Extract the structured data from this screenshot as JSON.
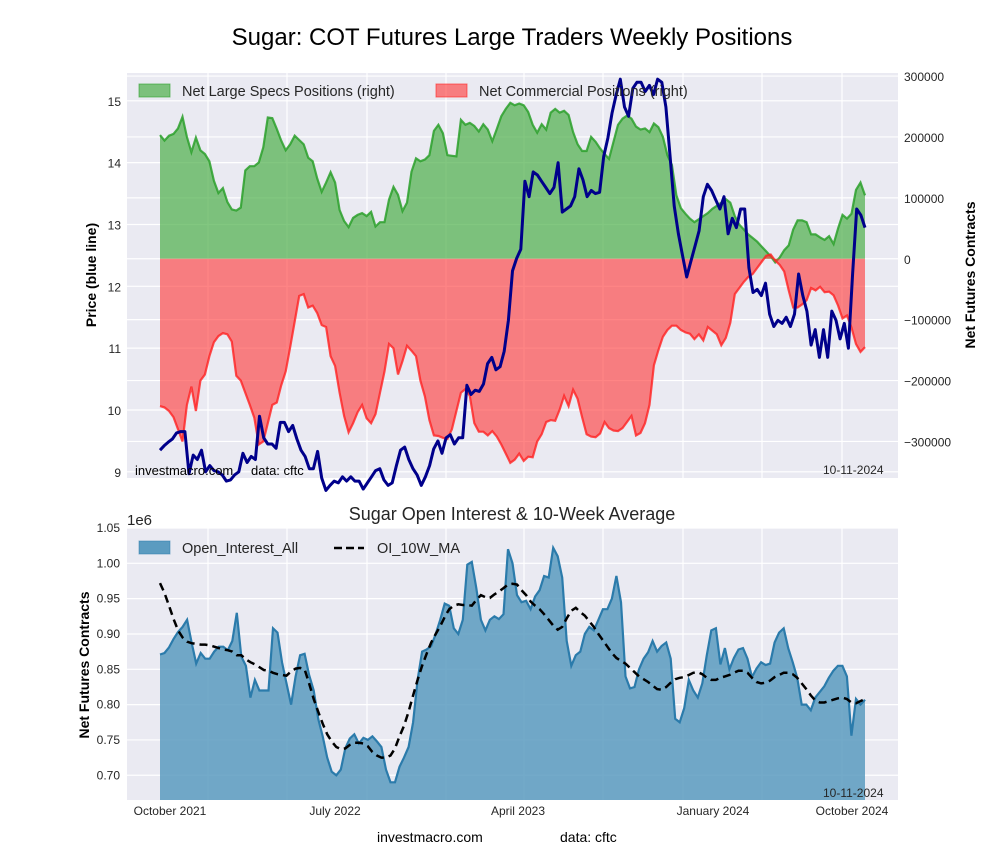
{
  "figure": {
    "title": "Sugar: COT Futures Large Traders Weekly Positions",
    "footer_site": "investmacro.com",
    "footer_source": "data: cftc"
  },
  "colors": {
    "specs_fill": "#4daf4a",
    "specs_line": "#2ca02c",
    "comm_fill": "#ff3333",
    "comm_line": "#ff2020",
    "price_line": "#00008b",
    "oi_fill": "#5b9bc0",
    "oi_line": "#2b7bab",
    "ma_line": "#000000",
    "plot_bg": "#eaeaf2",
    "grid": "#ffffff"
  },
  "chart_data": [
    {
      "type": "area",
      "title": "",
      "ylabel": "Price (blue line)",
      "y2label": "Net Futures Contracts",
      "ylim": [
        8.9,
        15.45
      ],
      "y2lim": [
        -360000,
        305000
      ],
      "yticks": [
        "9",
        "10",
        "11",
        "12",
        "13",
        "14",
        "15"
      ],
      "y2ticks": [
        "300000",
        "200000",
        "100000",
        "0",
        "−100000",
        "−200000",
        "−300000"
      ],
      "grid": true,
      "legend_position": "top",
      "legend": [
        "Net Large Specs Positions (right)",
        "Net Commercial Positions (right)"
      ],
      "watermark_left": "investmacro.com     data: cftc",
      "date_label": "10-11-2024",
      "x_start": "2021-09-28",
      "x_end": "2024-10-08",
      "series": [
        {
          "name": "Net Large Specs Positions",
          "axis": "right",
          "values": [
            203000,
            194000,
            202000,
            205000,
            214000,
            233000,
            200000,
            175000,
            199000,
            178000,
            172000,
            160000,
            128000,
            108000,
            116000,
            93000,
            81000,
            79000,
            84000,
            145000,
            152000,
            152000,
            158000,
            183000,
            232000,
            231000,
            213000,
            194000,
            178000,
            188000,
            202000,
            195000,
            188000,
            166000,
            160000,
            132000,
            110000,
            125000,
            142000,
            125000,
            80000,
            62000,
            52000,
            67000,
            72000,
            75000,
            70000,
            77000,
            53000,
            60000,
            60000,
            97000,
            118000,
            105000,
            78000,
            92000,
            143000,
            165000,
            160000,
            163000,
            170000,
            210000,
            220000,
            206000,
            170000,
            169000,
            168000,
            228000,
            220000,
            223000,
            218000,
            209000,
            221000,
            212000,
            193000,
            213000,
            234000,
            246000,
            256000,
            252000,
            255000,
            252000,
            241000,
            220000,
            207000,
            221000,
            212000,
            240000,
            246000,
            240000,
            243000,
            236000,
            208000,
            188000,
            177000,
            177000,
            200000,
            192000,
            181000,
            172000,
            164000,
            192000,
            220000,
            230000,
            235000,
            230000,
            217000,
            212000,
            214000,
            208000,
            222000,
            216000,
            200000,
            170000,
            154000,
            104000,
            83000,
            74000,
            66000,
            60000,
            65000,
            70000,
            75000,
            82000,
            87000,
            92000,
            98000,
            92000,
            70000,
            56000,
            48000,
            40000,
            34000,
            28000,
            20000,
            12000,
            4000,
            -6000,
            2000,
            14000,
            22000,
            48000,
            63000,
            63000,
            60000,
            40000,
            40000,
            35000,
            31000,
            37000,
            24000,
            50000,
            72000,
            66000,
            74000,
            113000,
            125000,
            104000
          ]
        },
        {
          "name": "Net Commercial Positions",
          "axis": "right",
          "values": [
            -242000,
            -244000,
            -250000,
            -260000,
            -280000,
            -300000,
            -240000,
            -210000,
            -250000,
            -200000,
            -190000,
            -160000,
            -137000,
            -127000,
            -122000,
            -124000,
            -136000,
            -192000,
            -200000,
            -220000,
            -240000,
            -261000,
            -305000,
            -300000,
            -270000,
            -240000,
            -236000,
            -208000,
            -185000,
            -145000,
            -103000,
            -61000,
            -58000,
            -80000,
            -77000,
            -89000,
            -109000,
            -112000,
            -160000,
            -176000,
            -220000,
            -258000,
            -285000,
            -270000,
            -252000,
            -240000,
            -262000,
            -270000,
            -255000,
            -220000,
            -185000,
            -140000,
            -147000,
            -190000,
            -168000,
            -143000,
            -151000,
            -160000,
            -200000,
            -226000,
            -265000,
            -290000,
            -291000,
            -294000,
            -296000,
            -280000,
            -250000,
            -220000,
            -214000,
            -225000,
            -270000,
            -284000,
            -284000,
            -290000,
            -283000,
            -292000,
            -305000,
            -320000,
            -335000,
            -330000,
            -320000,
            -332000,
            -325000,
            -326000,
            -300000,
            -288000,
            -268000,
            -265000,
            -266000,
            -248000,
            -225000,
            -242000,
            -215000,
            -230000,
            -260000,
            -288000,
            -292000,
            -293000,
            -287000,
            -268000,
            -278000,
            -282000,
            -283000,
            -278000,
            -268000,
            -258000,
            -290000,
            -286000,
            -270000,
            -240000,
            -175000,
            -150000,
            -128000,
            -117000,
            -110000,
            -110000,
            -117000,
            -121000,
            -123000,
            -132000,
            -124000,
            -134000,
            -112000,
            -118000,
            -124000,
            -142000,
            -130000,
            -105000,
            -58000,
            -48000,
            -38000,
            -30000,
            -25000,
            -15000,
            -5000,
            5000,
            7000,
            -3000,
            -10000,
            -21000,
            -52000,
            -80000,
            -80000,
            -75000,
            -68000,
            -48000,
            -52000,
            -46000,
            -55000,
            -54000,
            -60000,
            -77000,
            -98000,
            -93000,
            -113000,
            -140000,
            -153000,
            -145000
          ]
        },
        {
          "name": "Price",
          "axis": "left",
          "values": [
            9.35,
            9.42,
            9.48,
            9.53,
            9.63,
            9.65,
            9.65,
            8.97,
            9.27,
            9.2,
            9.35,
            9.0,
            9.1,
            9.02,
            9.0,
            8.95,
            8.85,
            8.87,
            8.95,
            9.0,
            9.3,
            9.15,
            9.25,
            9.2,
            9.9,
            9.55,
            9.45,
            9.45,
            9.38,
            9.8,
            9.8,
            9.65,
            9.75,
            9.53,
            9.35,
            9.25,
            9.05,
            9.05,
            9.33,
            8.9,
            8.7,
            8.78,
            8.85,
            8.82,
            8.92,
            8.85,
            8.92,
            8.85,
            8.85,
            8.72,
            8.82,
            8.92,
            9.02,
            9.05,
            8.87,
            8.78,
            8.82,
            9.1,
            9.35,
            9.4,
            9.2,
            9.05,
            8.95,
            8.78,
            8.92,
            9.1,
            9.37,
            9.5,
            9.3,
            9.55,
            9.6,
            9.45,
            9.55,
            9.55,
            10.4,
            10.25,
            10.32,
            10.3,
            10.42,
            10.75,
            10.85,
            10.65,
            10.7,
            10.95,
            11.45,
            12.25,
            12.45,
            12.6,
            13.7,
            13.45,
            13.85,
            13.8,
            13.7,
            13.6,
            13.5,
            13.6,
            14.0,
            13.2,
            13.25,
            13.3,
            13.45,
            13.9,
            13.72,
            13.45,
            13.55,
            13.5,
            13.52,
            14.1,
            14.4,
            14.8,
            15.1,
            15.35,
            14.9,
            14.75,
            15.2,
            15.3,
            15.3,
            15.15,
            15.25,
            15.1,
            15.35,
            15.3,
            14.9,
            14.1,
            13.3,
            12.85,
            12.5,
            12.15,
            12.4,
            12.65,
            12.9,
            13.45,
            13.65,
            13.55,
            13.4,
            13.25,
            13.45,
            12.85,
            13.1,
            12.95,
            13.25,
            13.25,
            12.3,
            11.9,
            11.95,
            11.85,
            12.05,
            11.55,
            11.35,
            11.45,
            11.4,
            11.5,
            11.35,
            11.55,
            12.2,
            11.85,
            11.6,
            11.05,
            11.3,
            10.85,
            11.3,
            10.85,
            11.6,
            11.45,
            11.15,
            11.4,
            11.0,
            12.2,
            13.25,
            13.15,
            12.95
          ]
        }
      ]
    },
    {
      "type": "area",
      "title": "Sugar Open Interest & 10-Week Average",
      "ylabel": "Net Futures Contracts",
      "y_multiplier": "1e6",
      "ylim": [
        0.665,
        1.05
      ],
      "yticks": [
        "0.70",
        "0.75",
        "0.80",
        "0.85",
        "0.90",
        "0.95",
        "1.00",
        "1.05"
      ],
      "xticks": [
        "October 2021",
        "July 2022",
        "April 2023",
        "January 2024",
        "October 2024"
      ],
      "grid": true,
      "legend_position": "top-left",
      "legend": [
        "Open_Interest_All",
        "OI_10W_MA"
      ],
      "date_label": "10-11-2024",
      "series": [
        {
          "name": "Open_Interest_All",
          "values": [
            0.871,
            0.873,
            0.881,
            0.893,
            0.903,
            0.91,
            0.92,
            0.888,
            0.858,
            0.873,
            0.865,
            0.865,
            0.875,
            0.882,
            0.882,
            0.877,
            0.89,
            0.93,
            0.868,
            0.855,
            0.81,
            0.835,
            0.82,
            0.82,
            0.82,
            0.908,
            0.902,
            0.86,
            0.83,
            0.8,
            0.84,
            0.87,
            0.872,
            0.842,
            0.82,
            0.78,
            0.755,
            0.725,
            0.705,
            0.7,
            0.708,
            0.738,
            0.752,
            0.758,
            0.745,
            0.753,
            0.75,
            0.755,
            0.748,
            0.74,
            0.708,
            0.69,
            0.69,
            0.712,
            0.725,
            0.74,
            0.775,
            0.835,
            0.875,
            0.878,
            0.883,
            0.9,
            0.92,
            0.943,
            0.94,
            0.908,
            0.9,
            0.92,
            0.998,
            1.002,
            0.965,
            0.92,
            0.905,
            0.92,
            0.925,
            0.921,
            0.928,
            1.02,
            1.0,
            0.955,
            0.945,
            0.947,
            0.935,
            0.953,
            0.962,
            0.982,
            0.98,
            1.022,
            1.01,
            0.98,
            0.89,
            0.855,
            0.87,
            0.875,
            0.9,
            0.91,
            0.905,
            0.92,
            0.935,
            0.935,
            0.95,
            0.982,
            0.945,
            0.84,
            0.823,
            0.825,
            0.85,
            0.865,
            0.874,
            0.89,
            0.875,
            0.883,
            0.888,
            0.865,
            0.78,
            0.775,
            0.795,
            0.835,
            0.82,
            0.81,
            0.83,
            0.87,
            0.905,
            0.908,
            0.857,
            0.88,
            0.85,
            0.866,
            0.878,
            0.88,
            0.865,
            0.839,
            0.851,
            0.86,
            0.856,
            0.858,
            0.888,
            0.902,
            0.908,
            0.88,
            0.86,
            0.838,
            0.8,
            0.8,
            0.792,
            0.81,
            0.818,
            0.826,
            0.838,
            0.848,
            0.855,
            0.855,
            0.84,
            0.756,
            0.808,
            0.8,
            0.807
          ]
        },
        {
          "name": "OI_10W_MA",
          "values": [
            0.972,
            0.958,
            0.94,
            0.921,
            0.905,
            0.895,
            0.889,
            0.887,
            0.886,
            0.885,
            0.885,
            0.884,
            0.882,
            0.88,
            0.878,
            0.877,
            0.875,
            0.87,
            0.87,
            0.864,
            0.86,
            0.857,
            0.853,
            0.849,
            0.848,
            0.845,
            0.843,
            0.842,
            0.841,
            0.847,
            0.851,
            0.852,
            0.85,
            0.83,
            0.808,
            0.79,
            0.773,
            0.758,
            0.748,
            0.74,
            0.737,
            0.738,
            0.743,
            0.746,
            0.746,
            0.745,
            0.741,
            0.733,
            0.728,
            0.725,
            0.725,
            0.728,
            0.738,
            0.755,
            0.77,
            0.79,
            0.813,
            0.835,
            0.855,
            0.872,
            0.888,
            0.9,
            0.911,
            0.924,
            0.935,
            0.94,
            0.942,
            0.941,
            0.941,
            0.94,
            0.948,
            0.955,
            0.952,
            0.951,
            0.956,
            0.96,
            0.965,
            0.97,
            0.971,
            0.97,
            0.962,
            0.955,
            0.946,
            0.94,
            0.935,
            0.928,
            0.92,
            0.912,
            0.906,
            0.91,
            0.922,
            0.933,
            0.937,
            0.931,
            0.926,
            0.918,
            0.91,
            0.9,
            0.891,
            0.882,
            0.873,
            0.866,
            0.862,
            0.858,
            0.852,
            0.846,
            0.84,
            0.836,
            0.832,
            0.827,
            0.822,
            0.821,
            0.825,
            0.831,
            0.836,
            0.838,
            0.839,
            0.842,
            0.845,
            0.846,
            0.843,
            0.838,
            0.835,
            0.835,
            0.838,
            0.84,
            0.842,
            0.845,
            0.848,
            0.848,
            0.845,
            0.838,
            0.832,
            0.83,
            0.831,
            0.834,
            0.839,
            0.842,
            0.845,
            0.845,
            0.843,
            0.838,
            0.83,
            0.822,
            0.813,
            0.806,
            0.803,
            0.803,
            0.805,
            0.807,
            0.809,
            0.81,
            0.808,
            0.803,
            0.802,
            0.805,
            0.808
          ]
        }
      ]
    }
  ]
}
